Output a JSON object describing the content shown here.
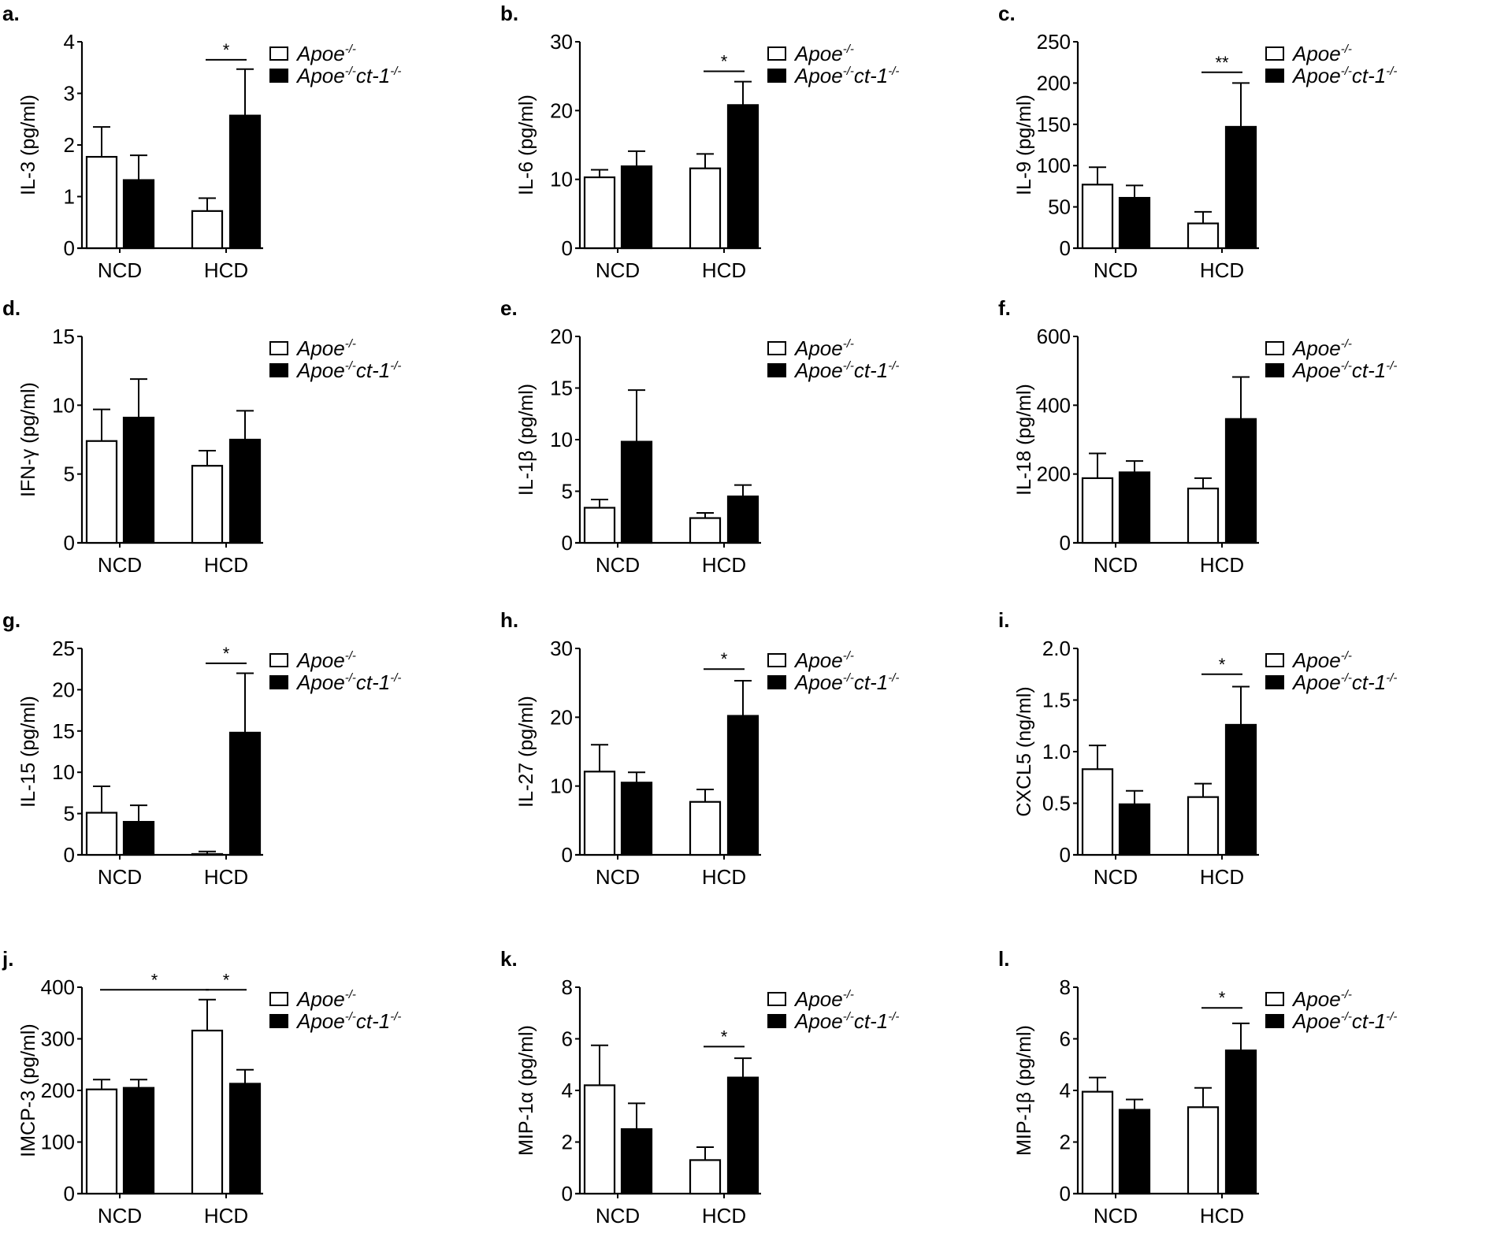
{
  "chart_data": [
    {
      "type": "bar",
      "panel_label": "a.",
      "ylabel": "IL-3 (pg/ml)",
      "ylim": [
        0,
        4
      ],
      "yticks": [
        0,
        1,
        2,
        3,
        4
      ],
      "categories": [
        "NCD",
        "HCD"
      ],
      "series": [
        {
          "name": "Apoe-/-",
          "values": [
            1.77,
            0.72
          ],
          "error_upper": [
            2.35,
            0.97
          ]
        },
        {
          "name": "Apoe-/-ct-1-/-",
          "values": [
            1.32,
            2.57
          ],
          "error_upper": [
            1.8,
            3.47
          ]
        }
      ],
      "significance": [
        {
          "from": [
            1,
            0
          ],
          "to": [
            1,
            1
          ],
          "y": 3.65,
          "label": "*"
        }
      ]
    },
    {
      "type": "bar",
      "panel_label": "b.",
      "ylabel": "IL-6 (pg/ml)",
      "ylim": [
        0,
        30
      ],
      "yticks": [
        0,
        10,
        20,
        30
      ],
      "categories": [
        "NCD",
        "HCD"
      ],
      "series": [
        {
          "name": "Apoe-/-",
          "values": [
            10.3,
            11.6
          ],
          "error_upper": [
            11.4,
            13.7
          ]
        },
        {
          "name": "Apoe-/-ct-1-/-",
          "values": [
            11.9,
            20.8
          ],
          "error_upper": [
            14.1,
            24.2
          ]
        }
      ],
      "significance": [
        {
          "from": [
            1,
            0
          ],
          "to": [
            1,
            1
          ],
          "y": 25.7,
          "label": "*"
        }
      ]
    },
    {
      "type": "bar",
      "panel_label": "c.",
      "ylabel": "IL-9 (pg/ml)",
      "ylim": [
        0,
        250
      ],
      "yticks": [
        0,
        50,
        100,
        150,
        200,
        250
      ],
      "categories": [
        "NCD",
        "HCD"
      ],
      "series": [
        {
          "name": "Apoe-/-",
          "values": [
            77,
            30
          ],
          "error_upper": [
            98,
            44
          ]
        },
        {
          "name": "Apoe-/-ct-1-/-",
          "values": [
            61,
            147
          ],
          "error_upper": [
            76,
            200
          ]
        }
      ],
      "significance": [
        {
          "from": [
            1,
            0
          ],
          "to": [
            1,
            1
          ],
          "y": 213,
          "label": "**"
        }
      ]
    },
    {
      "type": "bar",
      "panel_label": "d.",
      "ylabel": "IFN-γ (pg/ml)",
      "ylim": [
        0,
        15
      ],
      "yticks": [
        0,
        5,
        10,
        15
      ],
      "categories": [
        "NCD",
        "HCD"
      ],
      "series": [
        {
          "name": "Apoe-/-",
          "values": [
            7.4,
            5.6
          ],
          "error_upper": [
            9.7,
            6.7
          ]
        },
        {
          "name": "Apoe-/-ct-1-/-",
          "values": [
            9.1,
            7.5
          ],
          "error_upper": [
            11.9,
            9.6
          ]
        }
      ],
      "significance": []
    },
    {
      "type": "bar",
      "panel_label": "e.",
      "ylabel": "IL-1β (pg/ml)",
      "ylim": [
        0,
        20
      ],
      "yticks": [
        0,
        5,
        10,
        15,
        20
      ],
      "categories": [
        "NCD",
        "HCD"
      ],
      "series": [
        {
          "name": "Apoe-/-",
          "values": [
            3.4,
            2.4
          ],
          "error_upper": [
            4.2,
            2.9
          ]
        },
        {
          "name": "Apoe-/-ct-1-/-",
          "values": [
            9.8,
            4.5
          ],
          "error_upper": [
            14.8,
            5.6
          ]
        }
      ],
      "significance": []
    },
    {
      "type": "bar",
      "panel_label": "f.",
      "ylabel": "IL-18 (pg/ml)",
      "ylim": [
        0,
        600
      ],
      "yticks": [
        0,
        200,
        400,
        600
      ],
      "categories": [
        "NCD",
        "HCD"
      ],
      "series": [
        {
          "name": "Apoe-/-",
          "values": [
            188,
            158
          ],
          "error_upper": [
            260,
            188
          ]
        },
        {
          "name": "Apoe-/-ct-1-/-",
          "values": [
            205,
            360
          ],
          "error_upper": [
            238,
            482
          ]
        }
      ],
      "significance": []
    },
    {
      "type": "bar",
      "panel_label": "g.",
      "ylabel": "IL-15 (pg/ml)",
      "ylim": [
        0,
        25
      ],
      "yticks": [
        0,
        5,
        10,
        15,
        20,
        25
      ],
      "categories": [
        "NCD",
        "HCD"
      ],
      "series": [
        {
          "name": "Apoe-/-",
          "values": [
            5.1,
            0.1
          ],
          "error_upper": [
            8.3,
            0.4
          ]
        },
        {
          "name": "Apoe-/-ct-1-/-",
          "values": [
            4.0,
            14.8
          ],
          "error_upper": [
            6.0,
            22.0
          ]
        }
      ],
      "significance": [
        {
          "from": [
            1,
            0
          ],
          "to": [
            1,
            1
          ],
          "y": 23.2,
          "label": "*"
        }
      ]
    },
    {
      "type": "bar",
      "panel_label": "h.",
      "ylabel": "IL-27 (pg/ml)",
      "ylim": [
        0,
        30
      ],
      "yticks": [
        0,
        10,
        20,
        30
      ],
      "categories": [
        "NCD",
        "HCD"
      ],
      "series": [
        {
          "name": "Apoe-/-",
          "values": [
            12.1,
            7.7
          ],
          "error_upper": [
            16.0,
            9.5
          ]
        },
        {
          "name": "Apoe-/-ct-1-/-",
          "values": [
            10.5,
            20.2
          ],
          "error_upper": [
            12.0,
            25.3
          ]
        }
      ],
      "significance": [
        {
          "from": [
            1,
            0
          ],
          "to": [
            1,
            1
          ],
          "y": 27,
          "label": "*"
        }
      ]
    },
    {
      "type": "bar",
      "panel_label": "i.",
      "ylabel": "CXCL5 (ng/ml)",
      "ylim": [
        0,
        2.0
      ],
      "yticks": [
        "0",
        "0.5",
        "1.0",
        "1.5",
        "2.0"
      ],
      "categories": [
        "NCD",
        "HCD"
      ],
      "series": [
        {
          "name": "Apoe-/-",
          "values": [
            0.83,
            0.56
          ],
          "error_upper": [
            1.06,
            0.69
          ]
        },
        {
          "name": "Apoe-/-ct-1-/-",
          "values": [
            0.49,
            1.26
          ],
          "error_upper": [
            0.62,
            1.63
          ]
        }
      ],
      "significance": [
        {
          "from": [
            1,
            0
          ],
          "to": [
            1,
            1
          ],
          "y": 1.75,
          "label": "*"
        }
      ]
    },
    {
      "type": "bar",
      "panel_label": "j.",
      "ylabel": "IMCP-3 (pg/ml)",
      "ylim": [
        0,
        400
      ],
      "yticks": [
        0,
        100,
        200,
        300,
        400
      ],
      "categories": [
        "NCD",
        "HCD"
      ],
      "series": [
        {
          "name": "Apoe-/-",
          "values": [
            202,
            316
          ],
          "error_upper": [
            221,
            376
          ]
        },
        {
          "name": "Apoe-/-ct-1-/-",
          "values": [
            205,
            213
          ],
          "error_upper": [
            221,
            240
          ]
        }
      ],
      "significance": [
        {
          "from": [
            0,
            0
          ],
          "to": [
            1,
            0
          ],
          "y": 395,
          "label": "*"
        },
        {
          "from": [
            1,
            0
          ],
          "to": [
            1,
            1
          ],
          "y": 395,
          "label": "*"
        }
      ]
    },
    {
      "type": "bar",
      "panel_label": "k.",
      "ylabel": "MIP-1α (pg/ml)",
      "ylim": [
        0,
        8
      ],
      "yticks": [
        0,
        2,
        4,
        6,
        8
      ],
      "categories": [
        "NCD",
        "HCD"
      ],
      "series": [
        {
          "name": "Apoe-/-",
          "values": [
            4.2,
            1.3
          ],
          "error_upper": [
            5.75,
            1.8
          ]
        },
        {
          "name": "Apoe-/-ct-1-/-",
          "values": [
            2.5,
            4.5
          ],
          "error_upper": [
            3.5,
            5.25
          ]
        }
      ],
      "significance": [
        {
          "from": [
            1,
            0
          ],
          "to": [
            1,
            1
          ],
          "y": 5.7,
          "label": "*"
        }
      ]
    },
    {
      "type": "bar",
      "panel_label": "l.",
      "ylabel": "MIP-1β (pg/ml)",
      "ylim": [
        0,
        8
      ],
      "yticks": [
        0,
        2,
        4,
        6,
        8
      ],
      "categories": [
        "NCD",
        "HCD"
      ],
      "series": [
        {
          "name": "Apoe-/-",
          "values": [
            3.95,
            3.35
          ],
          "error_upper": [
            4.5,
            4.1
          ]
        },
        {
          "name": "Apoe-/-ct-1-/-",
          "values": [
            3.25,
            5.55
          ],
          "error_upper": [
            3.65,
            6.6
          ]
        }
      ],
      "significance": [
        {
          "from": [
            1,
            0
          ],
          "to": [
            1,
            1
          ],
          "y": 7.2,
          "label": "*"
        }
      ]
    }
  ],
  "legend": [
    {
      "text": "Apoe",
      "sup": "-/-",
      "text2": "",
      "sup2": "",
      "fill": "#ffffff"
    },
    {
      "text": "Apoe",
      "sup": "-/-",
      "text2": "ct-1",
      "sup2": "-/-",
      "fill": "#000000"
    }
  ],
  "colors": {
    "series1": "#ffffff",
    "series2": "#000000",
    "stroke": "#000000"
  }
}
